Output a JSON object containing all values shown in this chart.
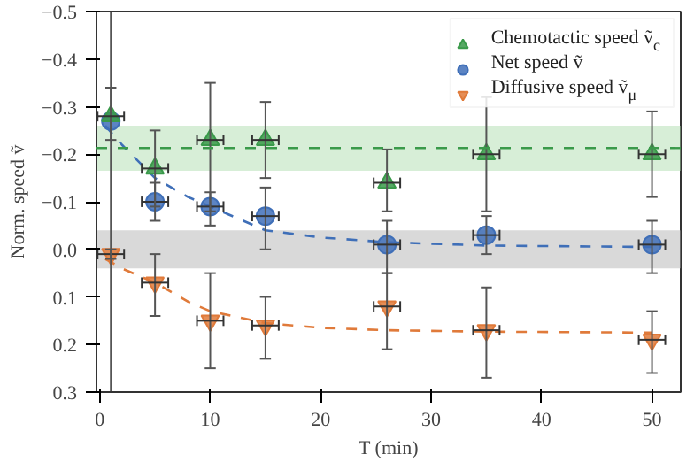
{
  "chart_data": {
    "type": "scatter",
    "xlabel": "T (min)",
    "ylabel": "Norm. speed ṽ",
    "xlim": [
      -0.3,
      52.6
    ],
    "ylim": [
      0.3,
      -0.5
    ],
    "xticks": [
      0,
      10,
      20,
      30,
      40,
      50
    ],
    "yticks": [
      {
        "value": -0.5,
        "label": "−0.5"
      },
      {
        "value": -0.4,
        "label": "−0.4"
      },
      {
        "value": -0.3,
        "label": "−0.3"
      },
      {
        "value": -0.2,
        "label": "−0.2"
      },
      {
        "value": -0.1,
        "label": "−0.1"
      },
      {
        "value": 0.0,
        "label": "0.0"
      },
      {
        "value": 0.1,
        "label": "0.1"
      },
      {
        "value": 0.2,
        "label": "0.2"
      },
      {
        "value": 0.3,
        "label": "0.3"
      }
    ],
    "grid": false,
    "legend": "top right",
    "bands": [
      {
        "axis": "y",
        "from": -0.26,
        "to": -0.165,
        "color": "#a6d9a6"
      },
      {
        "axis": "y",
        "from": -0.04,
        "to": 0.04,
        "color": "#aaaaaa"
      }
    ],
    "ref_lines": [
      {
        "axis": "y",
        "value": -0.213,
        "color": "#3a9a4a",
        "line_style": "dashed"
      }
    ],
    "series": [
      {
        "name": "Chemotactic speed ṽ$_{c}$",
        "marker": "triangle",
        "color": "#3a9a4a",
        "x": [
          1,
          5,
          10,
          15,
          26,
          35,
          50
        ],
        "values": [
          -0.28,
          -0.17,
          -0.23,
          -0.23,
          -0.14,
          -0.2,
          -0.2
        ],
        "errors": [
          [
            -0.34,
            -0.23
          ],
          [
            -0.25,
            -0.09
          ],
          [
            -0.35,
            -0.08
          ],
          [
            -0.31,
            -0.15
          ],
          [
            -0.21,
            -0.08
          ],
          [
            -0.32,
            -0.08
          ],
          [
            -0.29,
            -0.11
          ]
        ],
        "xerrors": [
          1.2,
          1.2,
          1.2,
          1.2,
          1.2,
          1.2,
          1.2
        ]
      },
      {
        "name": "Net speed ṽ",
        "marker": "circle",
        "color": "#3f6fb8",
        "x": [
          1,
          5,
          10,
          15,
          26,
          35,
          50
        ],
        "values": [
          -0.27,
          -0.1,
          -0.09,
          -0.07,
          -0.01,
          -0.03,
          -0.01
        ],
        "errors": [
          [
            -0.5,
            0.3
          ],
          [
            -0.14,
            -0.06
          ],
          [
            -0.12,
            -0.05
          ],
          [
            -0.13,
            0.0
          ],
          [
            -0.06,
            0.05
          ],
          [
            -0.07,
            0.01
          ],
          [
            -0.06,
            0.05
          ]
        ],
        "xerrors": [
          null,
          1.2,
          1.2,
          1.2,
          1.2,
          1.2,
          1.2
        ]
      },
      {
        "name": "Diffusive speed ṽ$_{μ}$",
        "color": "#e07a3a",
        "x": [
          1,
          5,
          10,
          15,
          26,
          35,
          50
        ],
        "values": [
          0.01,
          0.07,
          0.15,
          0.16,
          0.12,
          0.17,
          0.19
        ],
        "errors": [
          [
            0.0,
            0.02
          ],
          [
            0.01,
            0.14
          ],
          [
            0.05,
            0.25
          ],
          [
            0.1,
            0.23
          ],
          [
            0.05,
            0.21
          ],
          [
            0.08,
            0.27
          ],
          [
            0.13,
            0.26
          ]
        ],
        "xerrors": [
          1.2,
          1.2,
          1.2,
          1.2,
          1.2,
          1.2,
          1.2
        ]
      },
      {
        "type": "line",
        "line_style": "dashed",
        "color": "#3f6fb8",
        "x": [
          0.5,
          2,
          5,
          8,
          10,
          15,
          20,
          26,
          35,
          50
        ],
        "values": [
          -0.26,
          -0.22,
          -0.15,
          -0.11,
          -0.09,
          -0.04,
          -0.025,
          -0.015,
          -0.008,
          -0.005
        ]
      },
      {
        "type": "line",
        "line_style": "dashed",
        "color": "#e07a3a",
        "x": [
          0.5,
          2,
          5,
          8,
          10,
          15,
          20,
          26,
          35,
          50
        ],
        "values": [
          0.02,
          0.04,
          0.07,
          0.11,
          0.13,
          0.155,
          0.165,
          0.17,
          0.173,
          0.175
        ]
      }
    ]
  }
}
